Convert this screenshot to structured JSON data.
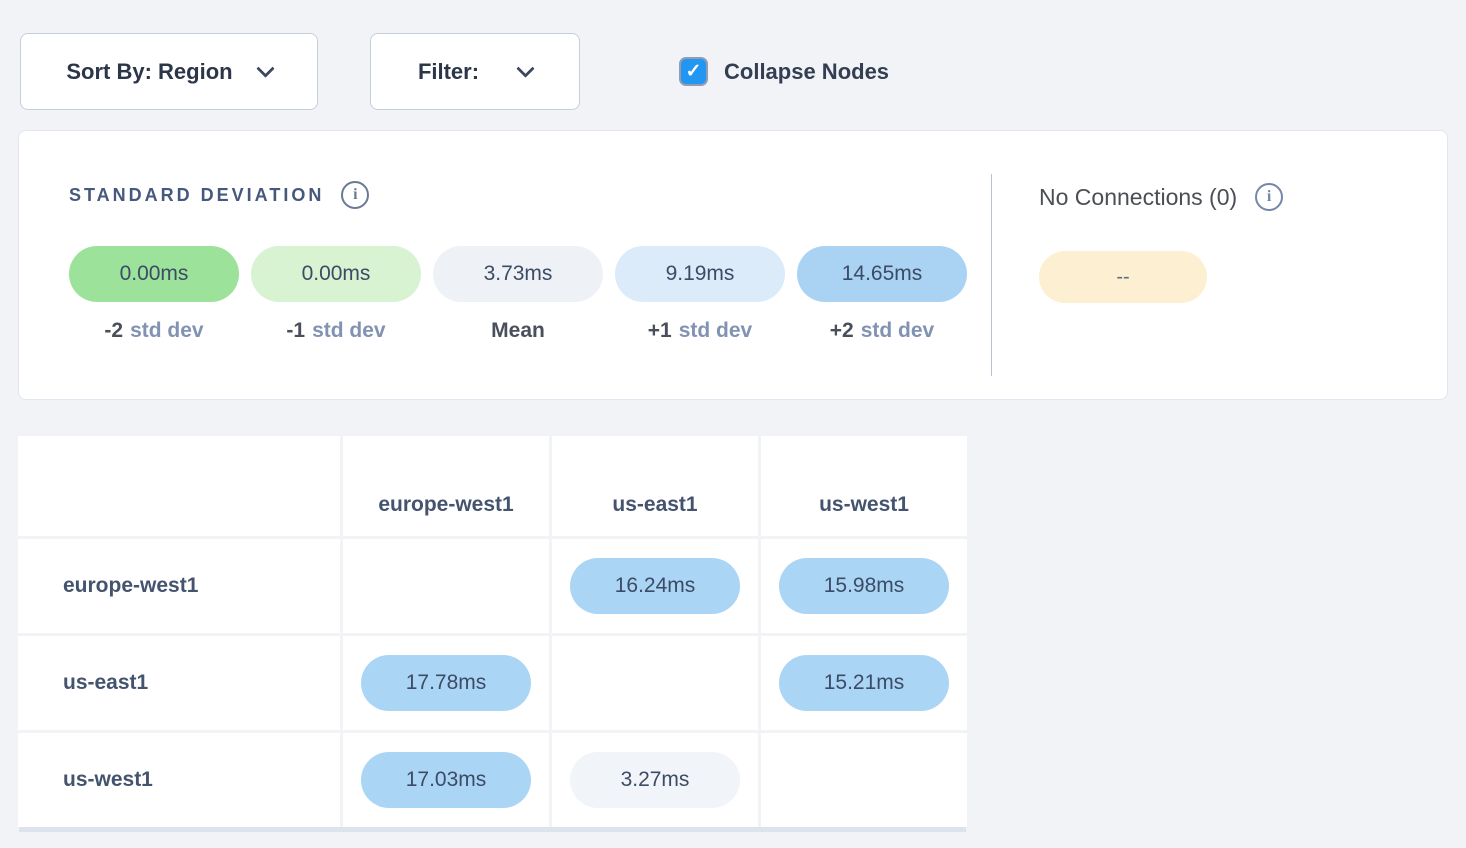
{
  "toolbar": {
    "sort_by_label": "Sort By: Region",
    "filter_label": "Filter:",
    "collapse_nodes_label": "Collapse Nodes",
    "collapse_nodes_checked": true,
    "checkbox_color": "#2196f3",
    "checkbox_check": "✓"
  },
  "legend": {
    "std_dev": {
      "title": "STANDARD DEVIATION",
      "info_icon_glyph": "i",
      "items": [
        {
          "value": "0.00ms",
          "label_strong": "-2",
          "label_light": "std dev",
          "color": "#9ce29a"
        },
        {
          "value": "0.00ms",
          "label_strong": "-1",
          "label_light": "std dev",
          "color": "#d7f3d1"
        },
        {
          "value": "3.73ms",
          "label_strong": "Mean",
          "label_light": "",
          "color": "#eef1f6"
        },
        {
          "value": "9.19ms",
          "label_strong": "+1",
          "label_light": "std dev",
          "color": "#dcebfa"
        },
        {
          "value": "14.65ms",
          "label_strong": "+2",
          "label_light": "std dev",
          "color": "#a9d2f3"
        }
      ]
    },
    "no_connections": {
      "title": "No Connections (0)",
      "info_icon_glyph": "i",
      "value": "--",
      "color": "#fdf0d2"
    }
  },
  "matrix": {
    "columns": [
      "europe-west1",
      "us-east1",
      "us-west1"
    ],
    "rows": [
      {
        "label": "europe-west1",
        "cells": [
          null,
          {
            "value": "16.24ms",
            "color": "#abd5f5"
          },
          {
            "value": "15.98ms",
            "color": "#abd5f5"
          }
        ]
      },
      {
        "label": "us-east1",
        "cells": [
          {
            "value": "17.78ms",
            "color": "#abd5f5"
          },
          null,
          {
            "value": "15.21ms",
            "color": "#abd5f5"
          }
        ]
      },
      {
        "label": "us-west1",
        "cells": [
          {
            "value": "17.03ms",
            "color": "#abd5f5"
          },
          {
            "value": "3.27ms",
            "color": "#f1f4f8"
          },
          null
        ]
      }
    ]
  }
}
